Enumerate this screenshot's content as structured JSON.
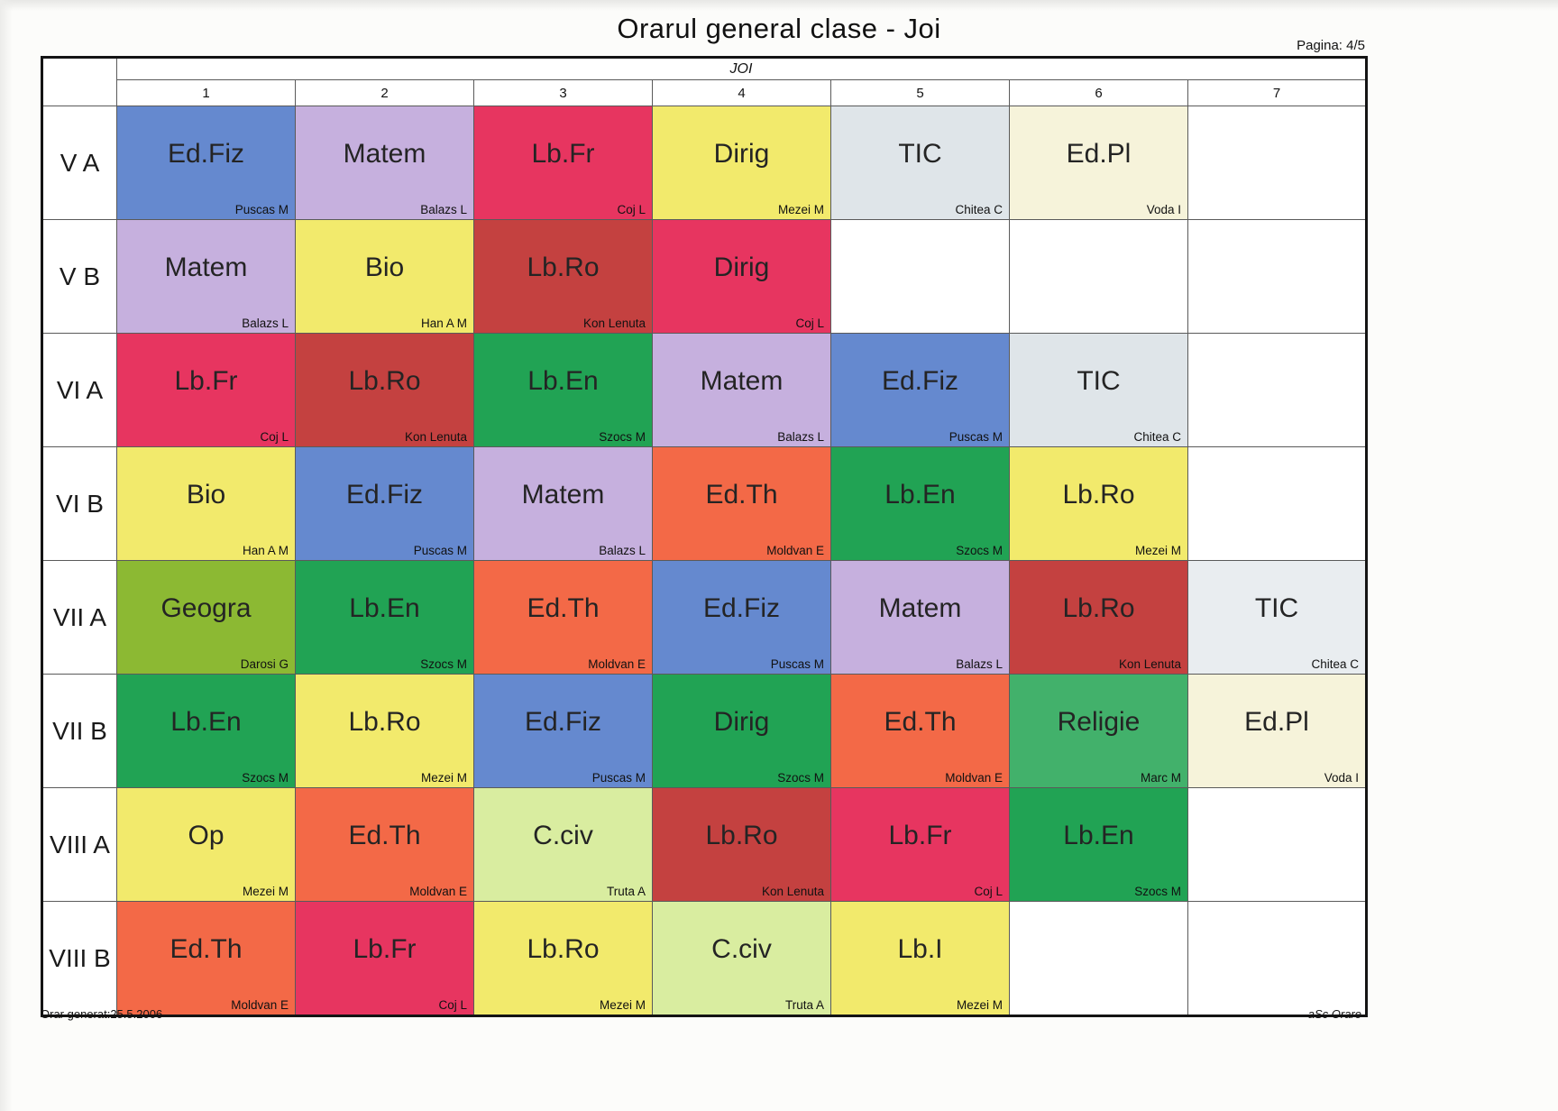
{
  "page": {
    "title": "Orarul general clase - Joi",
    "page_indicator": "Pagina: 4/5",
    "footer_left": "Orar generat:25.5.2006",
    "footer_right": "aSc Orare"
  },
  "table": {
    "day_header": "JOI",
    "period_headers": [
      "1",
      "2",
      "3",
      "4",
      "5",
      "6",
      "7"
    ],
    "rows": [
      {
        "class_label": "V A",
        "cells": [
          {
            "subject": "Ed.Fiz",
            "teacher": "Puscas M",
            "color": "#6589cf"
          },
          {
            "subject": "Matem",
            "teacher": "Balazs L",
            "color": "#c6b0de"
          },
          {
            "subject": "Lb.Fr",
            "teacher": "Coj L",
            "color": "#e73560"
          },
          {
            "subject": "Dirig",
            "teacher": "Mezei M",
            "color": "#f2ea6c"
          },
          {
            "subject": "TIC",
            "teacher": "Chitea C",
            "color": "#dfe5e9"
          },
          {
            "subject": "Ed.Pl",
            "teacher": "Voda I",
            "color": "#f6f3da"
          },
          null
        ]
      },
      {
        "class_label": "V B",
        "cells": [
          {
            "subject": "Matem",
            "teacher": "Balazs L",
            "color": "#c6b0de"
          },
          {
            "subject": "Bio",
            "teacher": "Han  A M",
            "color": "#f2ea6c"
          },
          {
            "subject": "Lb.Ro",
            "teacher": "Kon Lenuta",
            "color": "#c44140"
          },
          {
            "subject": "Dirig",
            "teacher": "Coj L",
            "color": "#e73560"
          },
          null,
          null,
          null
        ]
      },
      {
        "class_label": "VI A",
        "cells": [
          {
            "subject": "Lb.Fr",
            "teacher": "Coj L",
            "color": "#e73560"
          },
          {
            "subject": "Lb.Ro",
            "teacher": "Kon Lenuta",
            "color": "#c44140"
          },
          {
            "subject": "Lb.En",
            "teacher": "Szocs M",
            "color": "#21a354"
          },
          {
            "subject": "Matem",
            "teacher": "Balazs L",
            "color": "#c6b0de"
          },
          {
            "subject": "Ed.Fiz",
            "teacher": "Puscas M",
            "color": "#6589cf"
          },
          {
            "subject": "TIC",
            "teacher": "Chitea C",
            "color": "#dfe5e9"
          },
          null
        ]
      },
      {
        "class_label": "VI B",
        "cells": [
          {
            "subject": "Bio",
            "teacher": "Han  A M",
            "color": "#f2ea6c"
          },
          {
            "subject": "Ed.Fiz",
            "teacher": "Puscas M",
            "color": "#6589cf"
          },
          {
            "subject": "Matem",
            "teacher": "Balazs L",
            "color": "#c6b0de"
          },
          {
            "subject": "Ed.Th",
            "teacher": "Moldvan E",
            "color": "#f36947"
          },
          {
            "subject": "Lb.En",
            "teacher": "Szocs M",
            "color": "#21a354"
          },
          {
            "subject": "Lb.Ro",
            "teacher": "Mezei M",
            "color": "#f2ea6c"
          },
          null
        ]
      },
      {
        "class_label": "VII A",
        "cells": [
          {
            "subject": "Geogra",
            "teacher": "Darosi G",
            "color": "#8cb933"
          },
          {
            "subject": "Lb.En",
            "teacher": "Szocs M",
            "color": "#21a354"
          },
          {
            "subject": "Ed.Th",
            "teacher": "Moldvan E",
            "color": "#f36947"
          },
          {
            "subject": "Ed.Fiz",
            "teacher": "Puscas M",
            "color": "#6589cf"
          },
          {
            "subject": "Matem",
            "teacher": "Balazs L",
            "color": "#c6b0de"
          },
          {
            "subject": "Lb.Ro",
            "teacher": "Kon Lenuta",
            "color": "#c44140"
          },
          {
            "subject": "TIC",
            "teacher": "Chitea C",
            "color": "#e9edf0"
          }
        ]
      },
      {
        "class_label": "VII B",
        "cells": [
          {
            "subject": "Lb.En",
            "teacher": "Szocs M",
            "color": "#21a354"
          },
          {
            "subject": "Lb.Ro",
            "teacher": "Mezei M",
            "color": "#f2ea6c"
          },
          {
            "subject": "Ed.Fiz",
            "teacher": "Puscas M",
            "color": "#6589cf"
          },
          {
            "subject": "Dirig",
            "teacher": "Szocs M",
            "color": "#21a354"
          },
          {
            "subject": "Ed.Th",
            "teacher": "Moldvan E",
            "color": "#f36947"
          },
          {
            "subject": "Religie",
            "teacher": "Marc M",
            "color": "#42b16b"
          },
          {
            "subject": "Ed.Pl",
            "teacher": "Voda I",
            "color": "#f6f3da"
          }
        ]
      },
      {
        "class_label": "VIII A",
        "cells": [
          {
            "subject": "Op",
            "teacher": "Mezei M",
            "color": "#f2ea6c"
          },
          {
            "subject": "Ed.Th",
            "teacher": "Moldvan E",
            "color": "#f36947"
          },
          {
            "subject": "C.civ",
            "teacher": "Truta A",
            "color": "#d9eda0"
          },
          {
            "subject": "Lb.Ro",
            "teacher": "Kon Lenuta",
            "color": "#c44140"
          },
          {
            "subject": "Lb.Fr",
            "teacher": "Coj L",
            "color": "#e73560"
          },
          {
            "subject": "Lb.En",
            "teacher": "Szocs M",
            "color": "#21a354"
          },
          null
        ]
      },
      {
        "class_label": "VIII B",
        "cells": [
          {
            "subject": "Ed.Th",
            "teacher": "Moldvan E",
            "color": "#f36947"
          },
          {
            "subject": "Lb.Fr",
            "teacher": "Coj L",
            "color": "#e73560"
          },
          {
            "subject": "Lb.Ro",
            "teacher": "Mezei M",
            "color": "#f2ea6c"
          },
          {
            "subject": "C.civ",
            "teacher": "Truta A",
            "color": "#d9eda0"
          },
          {
            "subject": "Lb.I",
            "teacher": "Mezei M",
            "color": "#f2ea6c"
          },
          null,
          null
        ]
      }
    ]
  }
}
